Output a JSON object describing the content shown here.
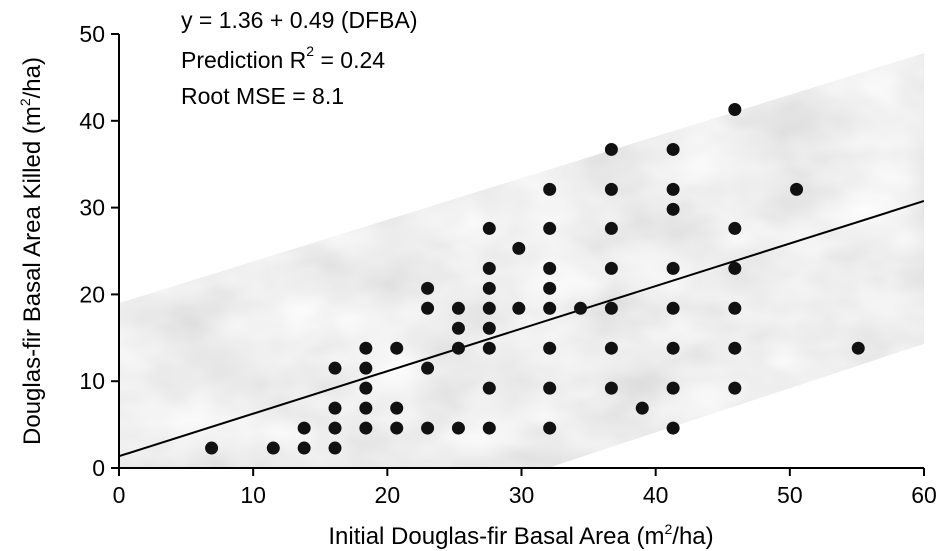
{
  "chart_data": {
    "type": "scatter",
    "xlabel_prefix": "Initial Douglas-fir Basal Area (m",
    "xlabel_sup": "2",
    "xlabel_suffix": "/ha)",
    "ylabel_prefix": "Douglas-fir Basal Area Killed (m",
    "ylabel_sup": "2",
    "ylabel_suffix": "/ha)",
    "xlim": [
      0,
      60
    ],
    "ylim": [
      0,
      50
    ],
    "xticks": [
      0,
      10,
      20,
      30,
      40,
      50,
      60
    ],
    "yticks": [
      0,
      10,
      20,
      30,
      40,
      50
    ],
    "grid": false,
    "annotations": {
      "equation": "y = 1.36 + 0.49 (DFBA)",
      "r2_prefix": "Prediction R",
      "r2_sup": "2",
      "r2_suffix": " = 0.24",
      "rmse": "Root MSE = 8.1"
    },
    "regression": {
      "intercept": 1.36,
      "slope": 0.49
    },
    "prediction_band": {
      "lower": [
        [
          0,
          -16.3
        ],
        [
          60,
          14.3
        ]
      ],
      "upper": [
        [
          0,
          19.0
        ],
        [
          60,
          47.8
        ]
      ]
    },
    "points": [
      [
        6.9,
        2.3
      ],
      [
        11.5,
        2.3
      ],
      [
        13.8,
        2.3
      ],
      [
        16.1,
        2.3
      ],
      [
        13.8,
        4.6
      ],
      [
        16.1,
        4.6
      ],
      [
        18.4,
        4.6
      ],
      [
        20.7,
        4.6
      ],
      [
        23.0,
        4.6
      ],
      [
        25.3,
        4.6
      ],
      [
        27.6,
        4.6
      ],
      [
        32.1,
        4.6
      ],
      [
        41.3,
        4.6
      ],
      [
        16.1,
        6.9
      ],
      [
        18.4,
        6.9
      ],
      [
        20.7,
        6.9
      ],
      [
        39.0,
        6.9
      ],
      [
        18.4,
        9.2
      ],
      [
        27.6,
        9.2
      ],
      [
        32.1,
        9.2
      ],
      [
        36.7,
        9.2
      ],
      [
        41.3,
        9.2
      ],
      [
        45.9,
        9.2
      ],
      [
        16.1,
        11.5
      ],
      [
        18.4,
        11.5
      ],
      [
        23.0,
        11.5
      ],
      [
        18.4,
        13.8
      ],
      [
        20.7,
        13.8
      ],
      [
        25.3,
        13.8
      ],
      [
        27.6,
        13.8
      ],
      [
        32.1,
        13.8
      ],
      [
        36.7,
        13.8
      ],
      [
        41.3,
        13.8
      ],
      [
        45.9,
        13.8
      ],
      [
        55.1,
        13.8
      ],
      [
        25.3,
        16.1
      ],
      [
        27.6,
        16.1
      ],
      [
        23.0,
        18.4
      ],
      [
        25.3,
        18.4
      ],
      [
        27.6,
        18.4
      ],
      [
        29.8,
        18.4
      ],
      [
        32.1,
        18.4
      ],
      [
        34.4,
        18.4
      ],
      [
        36.7,
        18.4
      ],
      [
        41.3,
        18.4
      ],
      [
        45.9,
        18.4
      ],
      [
        23.0,
        20.7
      ],
      [
        27.6,
        20.7
      ],
      [
        32.1,
        20.7
      ],
      [
        27.6,
        23.0
      ],
      [
        32.1,
        23.0
      ],
      [
        36.7,
        23.0
      ],
      [
        41.3,
        23.0
      ],
      [
        45.9,
        23.0
      ],
      [
        29.8,
        25.3
      ],
      [
        27.6,
        27.6
      ],
      [
        32.1,
        27.6
      ],
      [
        36.7,
        27.6
      ],
      [
        45.9,
        27.6
      ],
      [
        41.3,
        29.8
      ],
      [
        32.1,
        32.1
      ],
      [
        36.7,
        32.1
      ],
      [
        41.3,
        32.1
      ],
      [
        50.5,
        32.1
      ],
      [
        36.7,
        36.7
      ],
      [
        41.3,
        36.7
      ],
      [
        45.9,
        41.3
      ]
    ],
    "colors": {
      "points": "#111111",
      "band": "#b8b8b8",
      "line": "#000000"
    }
  }
}
